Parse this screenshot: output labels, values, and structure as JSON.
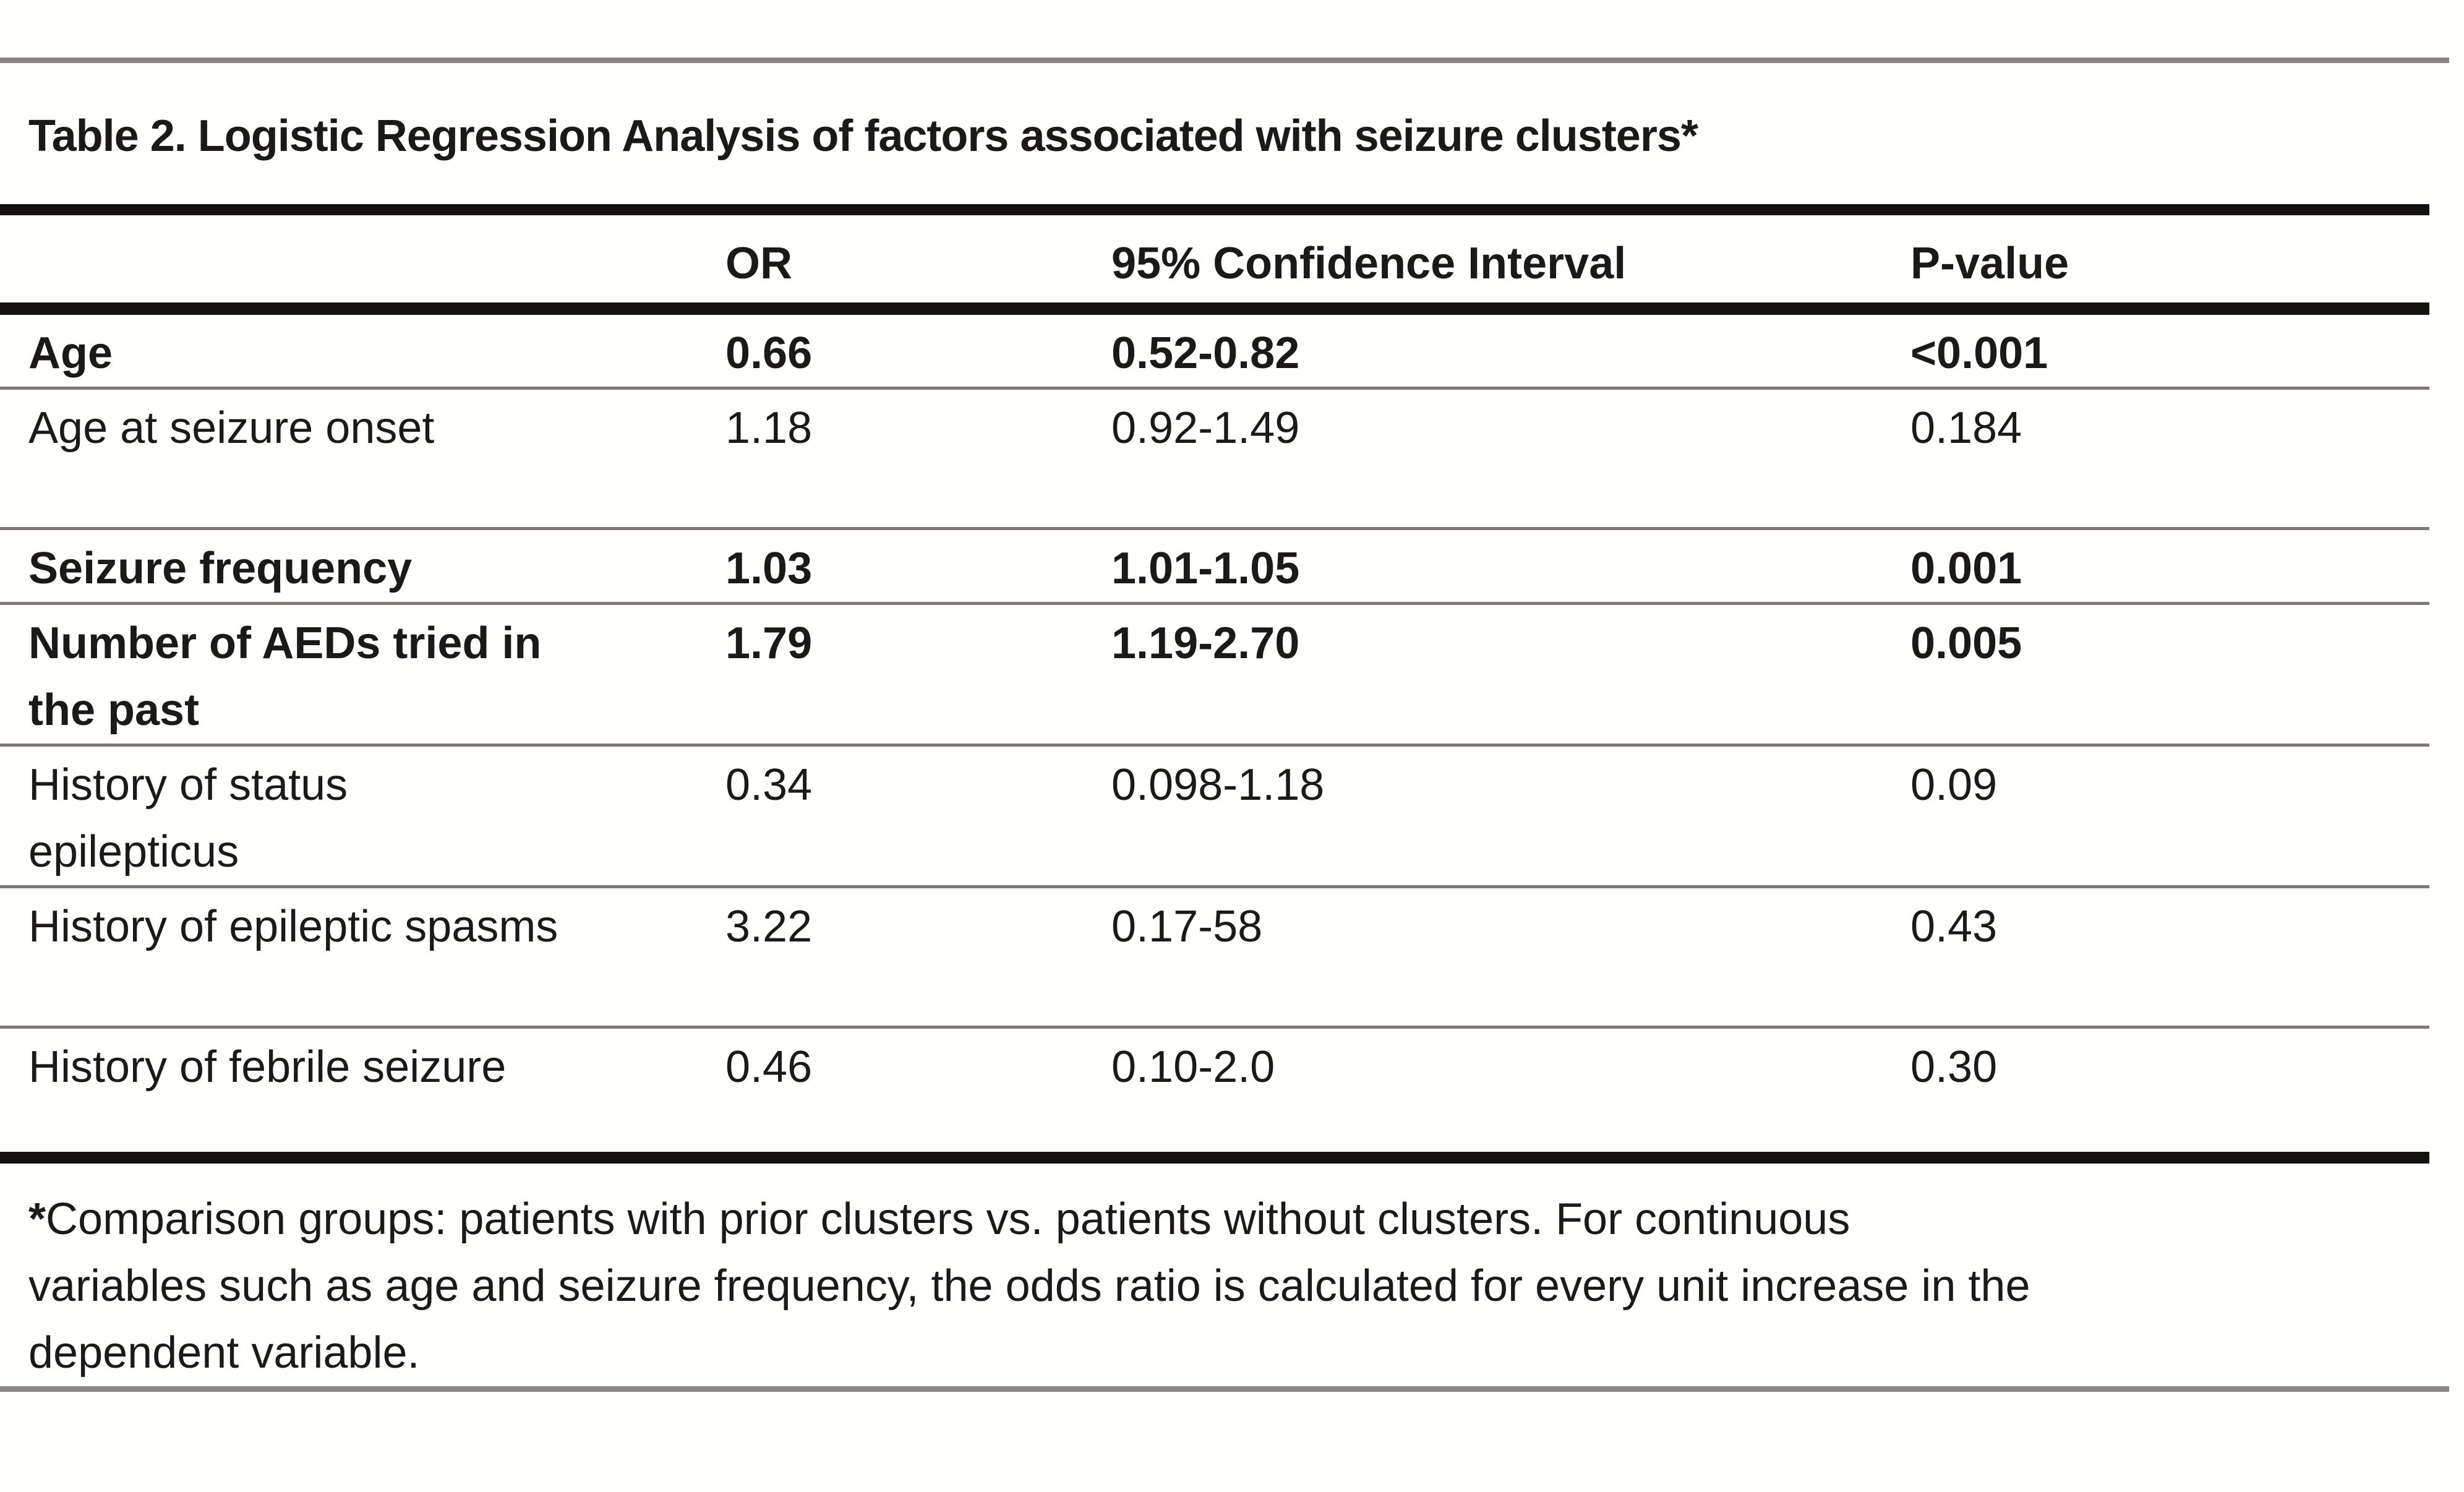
{
  "title": "Table 2. Logistic Regression Analysis of factors associated with seizure clusters*",
  "table": {
    "header": {
      "variable": "",
      "or": "OR",
      "ci": "95% Confidence Interval",
      "p": "P-value"
    },
    "rows": [
      {
        "label": "Age",
        "or": "0.66",
        "ci": "0.52-0.82",
        "p": "<0.001",
        "bold": true
      },
      {
        "label": "Age at seizure onset",
        "or": "1.18",
        "ci": "0.92-1.49",
        "p": "0.184",
        "bold": false
      },
      {
        "label": "Seizure frequency",
        "or": "1.03",
        "ci": "1.01-1.05",
        "p": "0.001",
        "bold": true
      },
      {
        "label": "Number of AEDs tried in\nthe past",
        "or": "1.79",
        "ci": "1.19-2.70",
        "p": "0.005",
        "bold": true
      },
      {
        "label": "History of status\nepilepticus",
        "or": "0.34",
        "ci": "0.098-1.18",
        "p": "0.09",
        "bold": false
      },
      {
        "label": "History of epileptic spasms",
        "or": "3.22",
        "ci": "0.17-58",
        "p": "0.43",
        "bold": false
      },
      {
        "label": "History of febrile seizure",
        "or": "0.46",
        "ci": "0.10-2.0",
        "p": "0.30",
        "bold": false
      }
    ]
  },
  "footnote": {
    "marker": "*",
    "text": "Comparison groups: patients with prior clusters vs. patients without clusters. For continuous\nvariables such as age and seizure frequency, the odds ratio is calculated for every unit increase in the\ndependent variable."
  },
  "colors": {
    "text": "#1c1a18",
    "rule_heavy": "#141210",
    "rule_light": "#7e7973",
    "hairline": "#8a8580",
    "background": "#ffffff"
  },
  "chart_data": {
    "type": "table",
    "title": "Table 2. Logistic Regression Analysis of factors associated with seizure clusters*",
    "columns": [
      "",
      "OR",
      "95% Confidence Interval",
      "P-value"
    ],
    "rows": [
      [
        "Age",
        "0.66",
        "0.52-0.82",
        "<0.001"
      ],
      [
        "Age at seizure onset",
        "1.18",
        "0.92-1.49",
        "0.184"
      ],
      [
        "Seizure frequency",
        "1.03",
        "1.01-1.05",
        "0.001"
      ],
      [
        "Number of AEDs tried in the past",
        "1.79",
        "1.19-2.70",
        "0.005"
      ],
      [
        "History of status epilepticus",
        "0.34",
        "0.098-1.18",
        "0.09"
      ],
      [
        "History of epileptic spasms",
        "3.22",
        "0.17-58",
        "0.43"
      ],
      [
        "History of febrile seizure",
        "0.46",
        "0.10-2.0",
        "0.30"
      ]
    ]
  }
}
